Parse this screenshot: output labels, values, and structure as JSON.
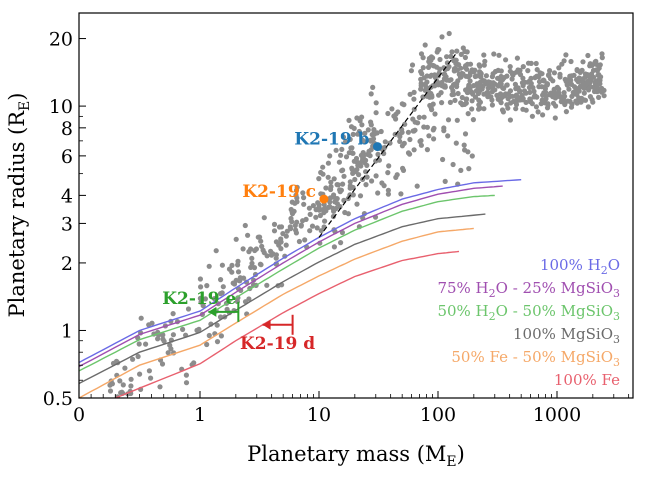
{
  "chart_data": {
    "type": "scatter",
    "title": "",
    "xlabel": "Planetary mass (M",
    "xlabel_sub": "E",
    "xlabel_close": ")",
    "ylabel": "Planetary radius (R",
    "ylabel_sub": "E",
    "ylabel_close": ")",
    "xscale": "symlog",
    "yscale": "log",
    "xlim": [
      0,
      4000
    ],
    "ylim": [
      0.5,
      26
    ],
    "x_ticks": [
      {
        "value": 0,
        "label": "0"
      },
      {
        "value": 1,
        "label": "1"
      },
      {
        "value": 10,
        "label": "10"
      },
      {
        "value": 100,
        "label": "100"
      },
      {
        "value": 1000,
        "label": "1000"
      }
    ],
    "y_ticks": [
      {
        "value": 0.5,
        "label": "0.5"
      },
      {
        "value": 1,
        "label": "1"
      },
      {
        "value": 2,
        "label": "2"
      },
      {
        "value": 3,
        "label": "3"
      },
      {
        "value": 4,
        "label": "4"
      },
      {
        "value": 6,
        "label": "6"
      },
      {
        "value": 8,
        "label": "8"
      },
      {
        "value": 10,
        "label": "10"
      },
      {
        "value": 20,
        "label": "20"
      }
    ],
    "planets": [
      {
        "name": "K2-19 b",
        "mass": 31,
        "radius": 6.6,
        "color": "#1f77b4",
        "label_pos": "left"
      },
      {
        "name": "K2-19 c",
        "mass": 11,
        "radius": 3.85,
        "color": "#ff7f0e",
        "label_pos": "left"
      }
    ],
    "upper_limits": [
      {
        "name": "K2-19 e",
        "mass": 2.1,
        "radius": 1.21,
        "color": "#2ca02c",
        "label_pos": "above-left"
      },
      {
        "name": "K2-19 d",
        "mass": 6.0,
        "radius": 1.06,
        "color": "#d62728",
        "label_pos": "below"
      }
    ],
    "trend_line": {
      "color": "#000000",
      "style": "dashed",
      "points": [
        [
          10,
          2.6
        ],
        [
          140,
          17
        ]
      ]
    },
    "composition_curves": [
      {
        "name": "100% H2O",
        "legend": [
          "100% H",
          "2",
          "O"
        ],
        "color": "#6a6ae6",
        "points": [
          [
            0,
            0.72
          ],
          [
            0.5,
            1.0
          ],
          [
            1,
            1.22
          ],
          [
            2,
            1.55
          ],
          [
            5,
            2.1
          ],
          [
            10,
            2.6
          ],
          [
            20,
            3.15
          ],
          [
            50,
            3.85
          ],
          [
            100,
            4.25
          ],
          [
            200,
            4.55
          ],
          [
            500,
            4.7
          ]
        ]
      },
      {
        "name": "75% H2O - 25% MgSiO3",
        "legend": [
          "75% H",
          "2",
          "O - 25% MgSiO",
          "3"
        ],
        "color": "#a04fb0",
        "points": [
          [
            0,
            0.69
          ],
          [
            0.5,
            0.96
          ],
          [
            1,
            1.17
          ],
          [
            2,
            1.48
          ],
          [
            5,
            2.0
          ],
          [
            10,
            2.48
          ],
          [
            20,
            3.0
          ],
          [
            50,
            3.65
          ],
          [
            100,
            4.05
          ],
          [
            200,
            4.3
          ],
          [
            350,
            4.4
          ]
        ]
      },
      {
        "name": "50% H2O - 50% MgSiO3",
        "legend": [
          "50% H",
          "2",
          "O - 50% MgSiO",
          "3"
        ],
        "color": "#6cc56c",
        "points": [
          [
            0,
            0.66
          ],
          [
            0.5,
            0.91
          ],
          [
            1,
            1.11
          ],
          [
            2,
            1.4
          ],
          [
            5,
            1.88
          ],
          [
            10,
            2.33
          ],
          [
            20,
            2.8
          ],
          [
            50,
            3.4
          ],
          [
            100,
            3.75
          ],
          [
            200,
            3.95
          ],
          [
            300,
            4.0
          ]
        ]
      },
      {
        "name": "100% MgSiO3",
        "legend": [
          "100% MgSiO",
          "3"
        ],
        "color": "#6b6b6b",
        "points": [
          [
            0,
            0.58
          ],
          [
            0.5,
            0.8
          ],
          [
            1,
            0.98
          ],
          [
            2,
            1.23
          ],
          [
            5,
            1.65
          ],
          [
            10,
            2.02
          ],
          [
            20,
            2.42
          ],
          [
            50,
            2.9
          ],
          [
            100,
            3.15
          ],
          [
            250,
            3.3
          ]
        ]
      },
      {
        "name": "50% Fe - 50% MgSiO3",
        "legend": [
          "50% Fe - 50% MgSiO",
          "3"
        ],
        "color": "#f5a868",
        "points": [
          [
            0,
            0.5
          ],
          [
            0.5,
            0.7
          ],
          [
            1,
            0.86
          ],
          [
            2,
            1.08
          ],
          [
            5,
            1.45
          ],
          [
            10,
            1.75
          ],
          [
            20,
            2.08
          ],
          [
            50,
            2.5
          ],
          [
            100,
            2.75
          ],
          [
            200,
            2.85
          ]
        ]
      },
      {
        "name": "100% Fe",
        "legend": [
          "100% Fe"
        ],
        "color": "#e8606e",
        "points": [
          [
            0.3,
            0.5
          ],
          [
            1,
            0.71
          ],
          [
            2,
            0.9
          ],
          [
            5,
            1.2
          ],
          [
            10,
            1.46
          ],
          [
            20,
            1.74
          ],
          [
            50,
            2.05
          ],
          [
            100,
            2.2
          ],
          [
            150,
            2.25
          ]
        ]
      }
    ],
    "background_points_color": "#8c8c8c",
    "background_points_description": "known exoplanets"
  }
}
